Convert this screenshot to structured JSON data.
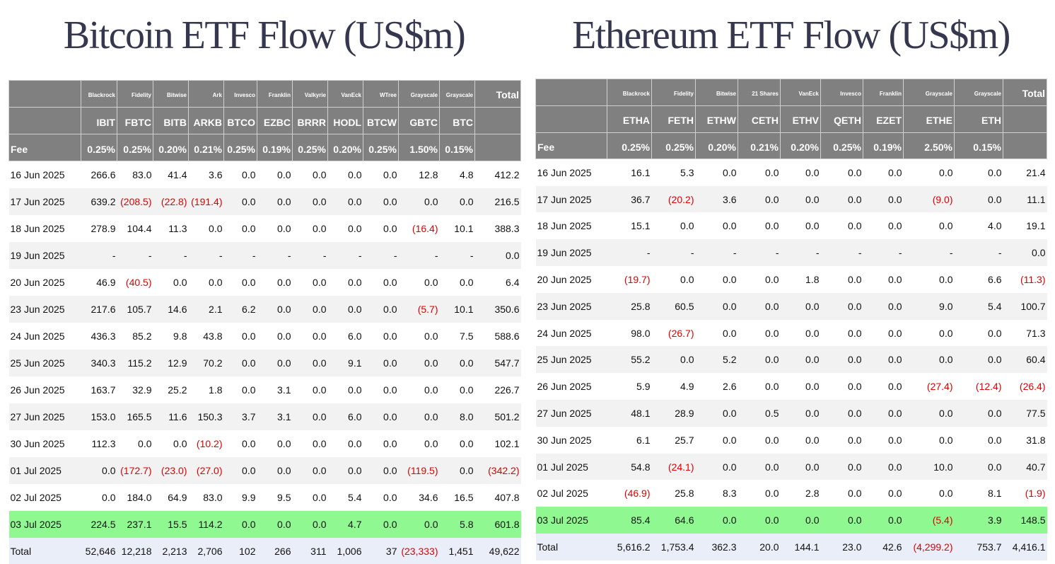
{
  "bitcoin": {
    "title": "Bitcoin ETF Flow (US$m)",
    "issuers": [
      "Blackrock",
      "Fidelity",
      "Bitwise",
      "Ark",
      "Invesco",
      "Franklin",
      "Valkyrie",
      "VanEck",
      "WTree",
      "Grayscale",
      "Grayscale"
    ],
    "total_header": "Total",
    "tickers": [
      "IBIT",
      "FBTC",
      "BITB",
      "ARKB",
      "BTCO",
      "EZBC",
      "BRRR",
      "HODL",
      "BTCW",
      "GBTC",
      "BTC"
    ],
    "fee_label": "Fee",
    "fees": [
      "0.25%",
      "0.25%",
      "0.20%",
      "0.21%",
      "0.25%",
      "0.19%",
      "0.25%",
      "0.20%",
      "0.25%",
      "1.50%",
      "0.15%"
    ],
    "rows": [
      [
        "16 Jun 2025",
        "266.6",
        "83.0",
        "41.4",
        "3.6",
        "0.0",
        "0.0",
        "0.0",
        "0.0",
        "0.0",
        "12.8",
        "4.8",
        "412.2"
      ],
      [
        "17 Jun 2025",
        "639.2",
        "(208.5)",
        "(22.8)",
        "(191.4)",
        "0.0",
        "0.0",
        "0.0",
        "0.0",
        "0.0",
        "0.0",
        "0.0",
        "216.5"
      ],
      [
        "18 Jun 2025",
        "278.9",
        "104.4",
        "11.3",
        "0.0",
        "0.0",
        "0.0",
        "0.0",
        "0.0",
        "0.0",
        "(16.4)",
        "10.1",
        "388.3"
      ],
      [
        "19 Jun 2025",
        "-",
        "-",
        "-",
        "-",
        "-",
        "-",
        "-",
        "-",
        "-",
        "-",
        "-",
        "0.0"
      ],
      [
        "20 Jun 2025",
        "46.9",
        "(40.5)",
        "0.0",
        "0.0",
        "0.0",
        "0.0",
        "0.0",
        "0.0",
        "0.0",
        "0.0",
        "0.0",
        "6.4"
      ],
      [
        "23 Jun 2025",
        "217.6",
        "105.7",
        "14.6",
        "2.1",
        "6.2",
        "0.0",
        "0.0",
        "0.0",
        "0.0",
        "(5.7)",
        "10.1",
        "350.6"
      ],
      [
        "24 Jun 2025",
        "436.3",
        "85.2",
        "9.8",
        "43.8",
        "0.0",
        "0.0",
        "0.0",
        "6.0",
        "0.0",
        "0.0",
        "7.5",
        "588.6"
      ],
      [
        "25 Jun 2025",
        "340.3",
        "115.2",
        "12.9",
        "70.2",
        "0.0",
        "0.0",
        "0.0",
        "9.1",
        "0.0",
        "0.0",
        "0.0",
        "547.7"
      ],
      [
        "26 Jun 2025",
        "163.7",
        "32.9",
        "25.2",
        "1.8",
        "0.0",
        "3.1",
        "0.0",
        "0.0",
        "0.0",
        "0.0",
        "0.0",
        "226.7"
      ],
      [
        "27 Jun 2025",
        "153.0",
        "165.5",
        "11.6",
        "150.3",
        "3.7",
        "3.1",
        "0.0",
        "6.0",
        "0.0",
        "0.0",
        "8.0",
        "501.2"
      ],
      [
        "30 Jun 2025",
        "112.3",
        "0.0",
        "0.0",
        "(10.2)",
        "0.0",
        "0.0",
        "0.0",
        "0.0",
        "0.0",
        "0.0",
        "0.0",
        "102.1"
      ],
      [
        "01 Jul 2025",
        "0.0",
        "(172.7)",
        "(23.0)",
        "(27.0)",
        "0.0",
        "0.0",
        "0.0",
        "0.0",
        "0.0",
        "(119.5)",
        "0.0",
        "(342.2)"
      ],
      [
        "02 Jul 2025",
        "0.0",
        "184.0",
        "64.9",
        "83.0",
        "9.9",
        "9.5",
        "0.0",
        "5.4",
        "0.0",
        "34.6",
        "16.5",
        "407.8"
      ],
      [
        "03 Jul 2025",
        "224.5",
        "237.1",
        "15.5",
        "114.2",
        "0.0",
        "0.0",
        "0.0",
        "4.7",
        "0.0",
        "0.0",
        "5.8",
        "601.8"
      ]
    ],
    "total_row": [
      "Total",
      "52,646",
      "12,218",
      "2,213",
      "2,706",
      "102",
      "266",
      "311",
      "1,006",
      "37",
      "(23,333)",
      "1,451",
      "49,622"
    ]
  },
  "ethereum": {
    "title": "Ethereum ETF Flow (US$m)",
    "issuers": [
      "Blackrock",
      "Fidelity",
      "Bitwise",
      "21 Shares",
      "VanEck",
      "Invesco",
      "Franklin",
      "Grayscale",
      "Grayscale"
    ],
    "total_header": "Total",
    "tickers": [
      "ETHA",
      "FETH",
      "ETHW",
      "CETH",
      "ETHV",
      "QETH",
      "EZET",
      "ETHE",
      "ETH"
    ],
    "fee_label": "Fee",
    "fees": [
      "0.25%",
      "0.25%",
      "0.20%",
      "0.21%",
      "0.20%",
      "0.25%",
      "0.19%",
      "2.50%",
      "0.15%"
    ],
    "rows": [
      [
        "16 Jun 2025",
        "16.1",
        "5.3",
        "0.0",
        "0.0",
        "0.0",
        "0.0",
        "0.0",
        "0.0",
        "0.0",
        "21.4"
      ],
      [
        "17 Jun 2025",
        "36.7",
        "(20.2)",
        "3.6",
        "0.0",
        "0.0",
        "0.0",
        "0.0",
        "(9.0)",
        "0.0",
        "11.1"
      ],
      [
        "18 Jun 2025",
        "15.1",
        "0.0",
        "0.0",
        "0.0",
        "0.0",
        "0.0",
        "0.0",
        "0.0",
        "4.0",
        "19.1"
      ],
      [
        "19 Jun 2025",
        "-",
        "-",
        "-",
        "-",
        "-",
        "-",
        "-",
        "-",
        "-",
        "0.0"
      ],
      [
        "20 Jun 2025",
        "(19.7)",
        "0.0",
        "0.0",
        "0.0",
        "1.8",
        "0.0",
        "0.0",
        "0.0",
        "6.6",
        "(11.3)"
      ],
      [
        "23 Jun 2025",
        "25.8",
        "60.5",
        "0.0",
        "0.0",
        "0.0",
        "0.0",
        "0.0",
        "9.0",
        "5.4",
        "100.7"
      ],
      [
        "24 Jun 2025",
        "98.0",
        "(26.7)",
        "0.0",
        "0.0",
        "0.0",
        "0.0",
        "0.0",
        "0.0",
        "0.0",
        "71.3"
      ],
      [
        "25 Jun 2025",
        "55.2",
        "0.0",
        "5.2",
        "0.0",
        "0.0",
        "0.0",
        "0.0",
        "0.0",
        "0.0",
        "60.4"
      ],
      [
        "26 Jun 2025",
        "5.9",
        "4.9",
        "2.6",
        "0.0",
        "0.0",
        "0.0",
        "0.0",
        "(27.4)",
        "(12.4)",
        "(26.4)"
      ],
      [
        "27 Jun 2025",
        "48.1",
        "28.9",
        "0.0",
        "0.5",
        "0.0",
        "0.0",
        "0.0",
        "0.0",
        "0.0",
        "77.5"
      ],
      [
        "30 Jun 2025",
        "6.1",
        "25.7",
        "0.0",
        "0.0",
        "0.0",
        "0.0",
        "0.0",
        "0.0",
        "0.0",
        "31.8"
      ],
      [
        "01 Jul 2025",
        "54.8",
        "(24.1)",
        "0.0",
        "0.0",
        "0.0",
        "0.0",
        "0.0",
        "10.0",
        "0.0",
        "40.7"
      ],
      [
        "02 Jul 2025",
        "(46.9)",
        "25.8",
        "8.3",
        "0.0",
        "2.8",
        "0.0",
        "0.0",
        "0.0",
        "8.1",
        "(1.9)"
      ],
      [
        "03 Jul 2025",
        "85.4",
        "64.6",
        "0.0",
        "0.0",
        "0.0",
        "0.0",
        "0.0",
        "(5.4)",
        "3.9",
        "148.5"
      ]
    ],
    "total_row": [
      "Total",
      "5,616.2",
      "1,753.4",
      "362.3",
      "20.0",
      "144.1",
      "23.0",
      "42.6",
      "(4,299.2)",
      "753.7",
      "4,416.1"
    ]
  }
}
